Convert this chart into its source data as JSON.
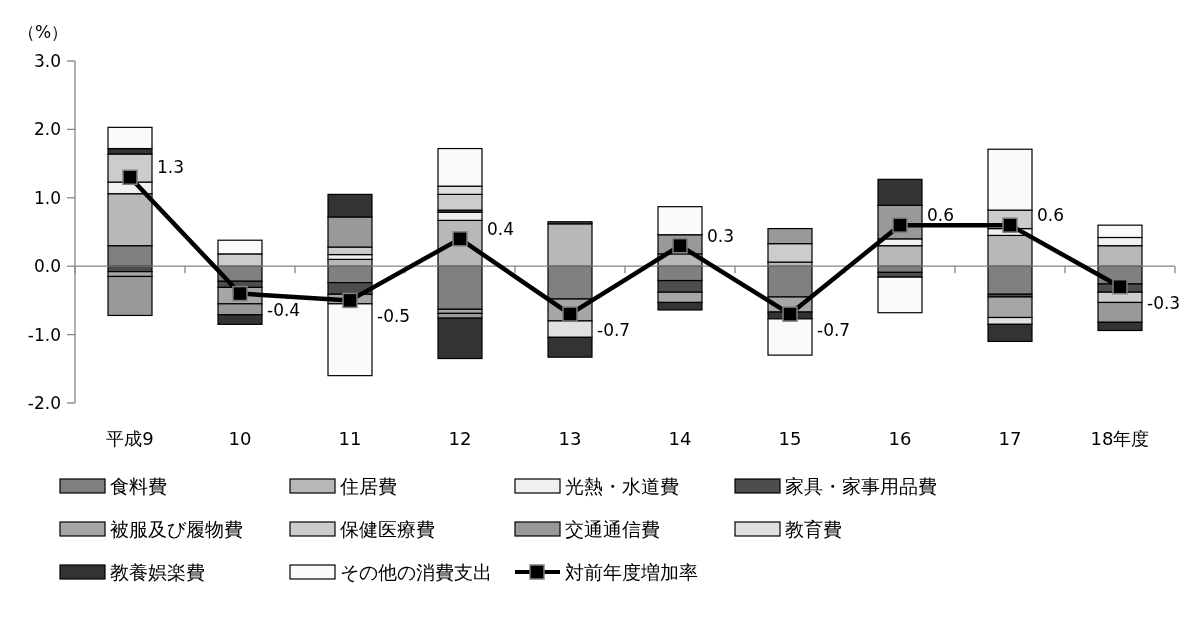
{
  "chart_data": {
    "type": "bar",
    "stacked": true,
    "ylabel": "（%）",
    "ylim": [
      -2,
      3
    ],
    "yticks": [
      {
        "value": -2,
        "label": "-2.0"
      },
      {
        "value": -1,
        "label": "-1.0"
      },
      {
        "value": 0,
        "label": "0.0"
      },
      {
        "value": 1,
        "label": "1.0"
      },
      {
        "value": 2,
        "label": "2.0"
      },
      {
        "value": 3,
        "label": "3.0"
      }
    ],
    "categories": [
      "平成9",
      "10",
      "11",
      "12",
      "13",
      "14",
      "15",
      "16",
      "17",
      "18年度"
    ],
    "grid": false,
    "legend": "bottom",
    "ref_lines": [
      {
        "axis": "y",
        "value": 0,
        "color": "#868686"
      }
    ],
    "series": [
      {
        "name": "食料費",
        "color": "#808080",
        "values": [
          0.3,
          -0.22,
          -0.24,
          -0.63,
          -0.48,
          -0.21,
          -0.45,
          -0.09,
          -0.41,
          -0.26
        ]
      },
      {
        "name": "住居費",
        "color": "#b8b8b8",
        "values": [
          0.76,
          null,
          0.1,
          0.67,
          0.62,
          0.18,
          0.06,
          0.3,
          0.45,
          0.3
        ]
      },
      {
        "name": "光熱・水道費",
        "color": "#f0f0f0",
        "values": [
          0.17,
          null,
          0.07,
          0.12,
          null,
          null,
          null,
          0.1,
          0.1,
          0.12
        ]
      },
      {
        "name": "家具・家事用品費",
        "color": "#4d4d4d",
        "values": [
          -0.08,
          -0.09,
          -0.17,
          0.03,
          0.03,
          -0.17,
          null,
          -0.07,
          -0.04,
          -0.12
        ]
      },
      {
        "name": "被服及び履物費",
        "color": "#a6a6a6",
        "values": [
          -0.07,
          -0.24,
          -0.14,
          -0.06,
          -0.32,
          -0.15,
          -0.22,
          null,
          -0.3,
          null
        ]
      },
      {
        "name": "保健医療費",
        "color": "#cccccc",
        "values": [
          0.41,
          0.18,
          0.11,
          0.23,
          null,
          null,
          0.27,
          null,
          0.27,
          -0.15
        ]
      },
      {
        "name": "交通通信費",
        "color": "#999999",
        "values": [
          -0.57,
          -0.16,
          0.44,
          -0.07,
          null,
          0.28,
          0.22,
          0.49,
          null,
          -0.29
        ]
      },
      {
        "name": "教育費",
        "color": "#e0e0e0",
        "values": [
          null,
          null,
          null,
          0.12,
          -0.24,
          null,
          null,
          null,
          -0.1,
          null
        ]
      },
      {
        "name": "教養娯楽費",
        "color": "#333333",
        "values": [
          0.08,
          -0.14,
          0.33,
          -0.59,
          -0.29,
          -0.11,
          -0.1,
          0.38,
          -0.25,
          -0.12
        ]
      },
      {
        "name": "その他の消費支出",
        "color": "#fafafa",
        "values": [
          0.31,
          0.2,
          -1.05,
          0.55,
          null,
          0.41,
          -0.53,
          -0.52,
          0.89,
          0.18
        ]
      },
      {
        "name": "対前年度増加率",
        "type": "line",
        "color": "#000000",
        "marker": "square",
        "values": [
          1.3,
          -0.4,
          -0.5,
          0.4,
          -0.7,
          0.3,
          -0.7,
          0.6,
          0.6,
          -0.3
        ],
        "value_labels": [
          "1.3",
          "-0.4",
          "-0.5",
          "0.4",
          "-0.7",
          "0.3",
          "-0.7",
          "0.6",
          "0.6",
          "-0.3"
        ]
      }
    ]
  }
}
